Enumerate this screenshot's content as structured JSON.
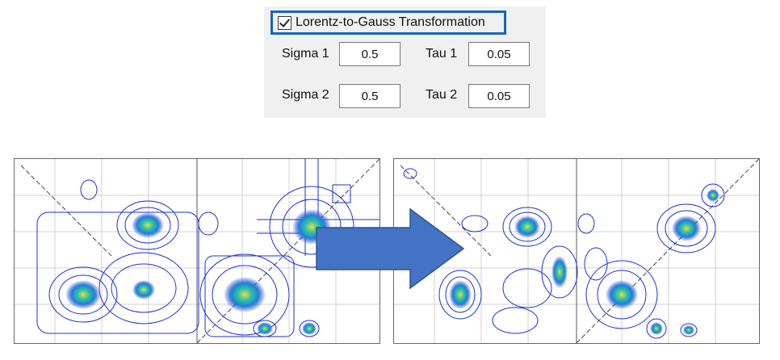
{
  "panel": {
    "checkbox": {
      "label": "Lorentz-to-Gauss Transformation",
      "checked": true
    },
    "params": [
      {
        "label": "Sigma 1",
        "value": "0.5"
      },
      {
        "label": "Tau 1",
        "value": "0.05"
      },
      {
        "label": "Sigma 2",
        "value": "0.5"
      },
      {
        "label": "Tau 2",
        "value": "0.05"
      }
    ]
  },
  "colors": {
    "highlight_border": "#1565c0",
    "contour": "#1e2fd6",
    "peak_core": "#ffd23a",
    "peak_mid": "#33c9a0",
    "arrow_fill": "#4472c4",
    "arrow_stroke": "#2f528f"
  },
  "arrow": {
    "icon": "right-arrow-icon"
  }
}
